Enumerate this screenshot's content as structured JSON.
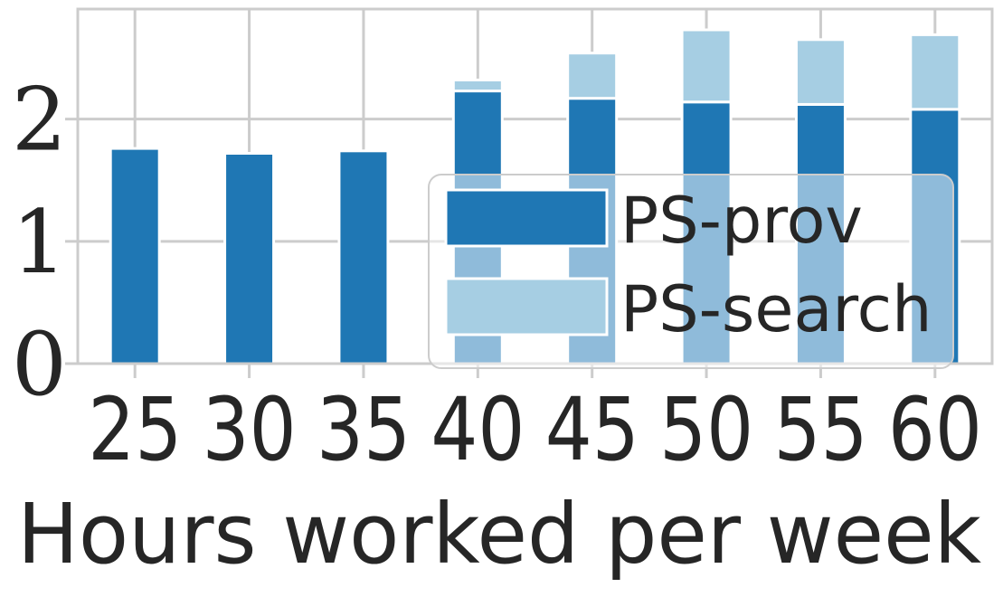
{
  "chart_data": {
    "type": "bar",
    "stacked": true,
    "title": "",
    "xlabel": "Hours worked per week",
    "ylabel": "",
    "categories": [
      "25",
      "30",
      "35",
      "40",
      "45",
      "50",
      "55",
      "60"
    ],
    "yticks": [
      "0",
      "1",
      "2"
    ],
    "ylim": [
      0,
      2.9
    ],
    "grid": true,
    "legend_position": "lower-right",
    "series": [
      {
        "name": "PS-prov",
        "color": "#1f77b4",
        "values": [
          1.76,
          1.72,
          1.74,
          2.23,
          2.17,
          2.14,
          2.12,
          2.08
        ]
      },
      {
        "name": "PS-search",
        "color": "#a6cee3",
        "values": [
          0,
          0,
          0,
          0.09,
          0.37,
          0.59,
          0.53,
          0.61
        ]
      }
    ]
  }
}
